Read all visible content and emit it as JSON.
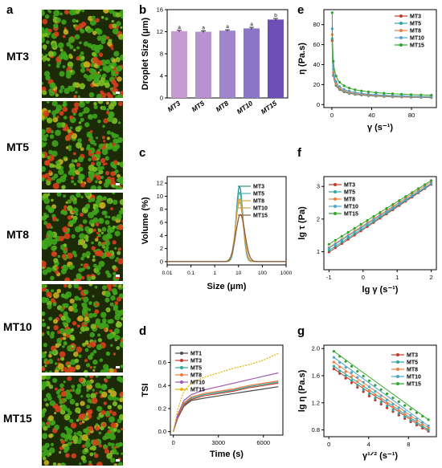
{
  "panel_labels": {
    "a": "a",
    "b": "b",
    "c": "c",
    "d": "d",
    "e": "e",
    "f": "f",
    "g": "g"
  },
  "micro_rows": [
    "MT3",
    "MT5",
    "MT8",
    "MT10",
    "MT15"
  ],
  "colors": {
    "MT1": "#4a4a4a",
    "MT3": "#c0392b",
    "MT5": "#2aa7a0",
    "MT8": "#f07a40",
    "MT10": "#4fa3c8",
    "MT15": "#2fa52a",
    "MT3c": "#2a8f8a",
    "MT5c": "#45b2b0",
    "MT8c": "#e8a530",
    "MT10c": "#c8a050",
    "MT15c": "#8b5a3c",
    "MT10d": "#9b59b6",
    "MT15d": "#e3b400",
    "bar": [
      "#c79bd1",
      "#b892d0",
      "#9f86cc",
      "#8a76c6",
      "#6e4fb8"
    ]
  },
  "chart_data": [
    {
      "panel": "b",
      "type": "bar",
      "categories": [
        "MT3",
        "MT5",
        "MT8",
        "MT10",
        "MT15"
      ],
      "values": [
        12.1,
        12.0,
        12.2,
        12.6,
        14.2
      ],
      "errors": [
        0.15,
        0.15,
        0.15,
        0.2,
        0.2
      ],
      "annotations": [
        "a",
        "a",
        "a",
        "a",
        "b"
      ],
      "ylabel": "Droplet Size (μm)",
      "ylim": [
        0,
        16
      ],
      "yticks": [
        0,
        4,
        8,
        12,
        16
      ]
    },
    {
      "panel": "c",
      "type": "line",
      "xlabel": "Size (μm)",
      "ylabel": "Volume (%)",
      "xscale": "log",
      "xlim": [
        0.01,
        1000
      ],
      "ylim": [
        -0.5,
        13
      ],
      "xticks": [
        "0.01",
        "0.1",
        "1",
        "10",
        "100",
        "1000"
      ],
      "yticks": [
        0,
        2,
        4,
        6,
        8,
        10,
        12
      ],
      "series": [
        {
          "name": "MT3",
          "peak_x": 11,
          "peak_y": 11.5,
          "width": 0.14
        },
        {
          "name": "MT5",
          "peak_x": 11,
          "peak_y": 10.6,
          "width": 0.145
        },
        {
          "name": "MT8",
          "peak_x": 11,
          "peak_y": 9.6,
          "width": 0.155
        },
        {
          "name": "MT10",
          "peak_x": 11,
          "peak_y": 9.1,
          "width": 0.165
        },
        {
          "name": "MT15",
          "peak_x": 12,
          "peak_y": 7.2,
          "width": 0.19
        }
      ]
    },
    {
      "panel": "d",
      "type": "line",
      "xlabel": "Time (s)",
      "ylabel": "TSI",
      "xlim": [
        -200,
        7300
      ],
      "ylim": [
        -0.03,
        0.75
      ],
      "xticks": [
        0,
        3000,
        6000
      ],
      "yticks": [
        0.0,
        0.2,
        0.4,
        0.6
      ],
      "series": [
        {
          "name": "MT1",
          "x": [
            0,
            300,
            700,
            1200,
            2000,
            3000,
            4000,
            5000,
            6000,
            7000
          ],
          "y": [
            0,
            0.12,
            0.22,
            0.27,
            0.29,
            0.31,
            0.33,
            0.35,
            0.37,
            0.39
          ]
        },
        {
          "name": "MT3",
          "x": [
            0,
            300,
            700,
            1200,
            2000,
            3000,
            4000,
            5000,
            6000,
            7000
          ],
          "y": [
            0,
            0.13,
            0.23,
            0.28,
            0.31,
            0.33,
            0.35,
            0.38,
            0.4,
            0.42
          ]
        },
        {
          "name": "MT5",
          "x": [
            0,
            300,
            700,
            1200,
            2000,
            3000,
            4000,
            5000,
            6000,
            7000
          ],
          "y": [
            0,
            0.14,
            0.24,
            0.29,
            0.32,
            0.34,
            0.36,
            0.39,
            0.41,
            0.43
          ]
        },
        {
          "name": "MT8",
          "x": [
            0,
            300,
            700,
            1200,
            2000,
            3000,
            4000,
            5000,
            6000,
            7000
          ],
          "y": [
            0,
            0.14,
            0.25,
            0.3,
            0.33,
            0.35,
            0.37,
            0.4,
            0.42,
            0.44
          ]
        },
        {
          "name": "MT10",
          "x": [
            0,
            300,
            700,
            1200,
            2000,
            3000,
            4000,
            5000,
            6000,
            7000
          ],
          "y": [
            0,
            0.15,
            0.27,
            0.32,
            0.36,
            0.39,
            0.42,
            0.45,
            0.48,
            0.51
          ]
        },
        {
          "name": "MT15",
          "x": [
            0,
            300,
            700,
            1200,
            2000,
            3000,
            4000,
            5000,
            6000,
            7000
          ],
          "y": [
            0,
            0.2,
            0.35,
            0.42,
            0.47,
            0.51,
            0.55,
            0.58,
            0.62,
            0.68
          ]
        }
      ]
    },
    {
      "panel": "e",
      "type": "line",
      "xlabel": "γ (s⁻¹)",
      "ylabel": "η (Pa.s)",
      "xlim": [
        -8,
        105
      ],
      "ylim": [
        -3,
        95
      ],
      "xticks": [
        0,
        40,
        80
      ],
      "yticks": [
        0,
        20,
        40,
        60,
        80
      ],
      "series": [
        {
          "name": "MT3",
          "y0": 60,
          "k": 0.52
        },
        {
          "name": "MT5",
          "y0": 62,
          "k": 0.52
        },
        {
          "name": "MT8",
          "y0": 66,
          "k": 0.51
        },
        {
          "name": "MT10",
          "y0": 72,
          "k": 0.5
        },
        {
          "name": "MT15",
          "y0": 88,
          "k": 0.48
        }
      ]
    },
    {
      "panel": "f",
      "type": "scatter",
      "xlabel": "lg γ (s⁻¹)",
      "ylabel": "lg τ (Pa)",
      "xlim": [
        -1.15,
        2.15
      ],
      "ylim": [
        0.45,
        3.3
      ],
      "xticks": [
        -1,
        0,
        1,
        2
      ],
      "yticks": [
        1,
        2,
        3
      ],
      "series": [
        {
          "name": "MT3",
          "a": 1.68,
          "b": 0.69
        },
        {
          "name": "MT5",
          "a": 1.72,
          "b": 0.68
        },
        {
          "name": "MT8",
          "a": 1.8,
          "b": 0.67
        },
        {
          "name": "MT10",
          "a": 1.77,
          "b": 0.66
        },
        {
          "name": "MT15",
          "a": 1.88,
          "b": 0.65
        }
      ]
    },
    {
      "panel": "g",
      "type": "scatter",
      "xlabel": "γ¹ᐟ² (s⁻¹)",
      "ylabel": "lg η (Pa.s)",
      "xlim": [
        -0.5,
        10.8
      ],
      "ylim": [
        0.7,
        2.05
      ],
      "xticks": [
        0,
        4,
        8
      ],
      "yticks": [
        0.8,
        1.2,
        1.6,
        2.0
      ],
      "series": [
        {
          "name": "MT3",
          "y0": 1.7,
          "y1": 0.78
        },
        {
          "name": "MT5",
          "y0": 1.74,
          "y1": 0.8
        },
        {
          "name": "MT8",
          "y0": 1.8,
          "y1": 0.83
        },
        {
          "name": "MT10",
          "y0": 1.87,
          "y1": 0.86
        },
        {
          "name": "MT15",
          "y0": 1.96,
          "y1": 0.95
        }
      ]
    }
  ]
}
